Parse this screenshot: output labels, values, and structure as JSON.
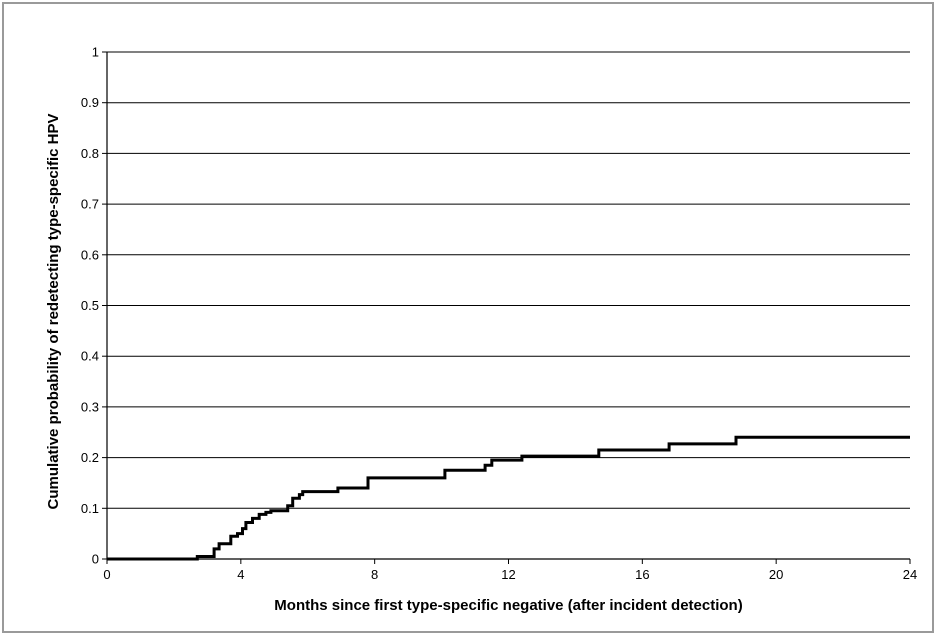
{
  "chart_data": {
    "type": "line",
    "title": "",
    "xlabel": "Months since first type-specific negative  (after incident detection)",
    "ylabel": "Cumulative probability of redetecting type-specific HPV",
    "xlim": [
      0,
      24
    ],
    "ylim": [
      0,
      1
    ],
    "x_ticks": [
      0,
      4,
      8,
      12,
      16,
      20,
      24
    ],
    "x_tick_labels": [
      "0",
      "4",
      "8",
      "12",
      "16",
      "20",
      "24"
    ],
    "y_ticks": [
      0,
      0.1,
      0.2,
      0.3,
      0.4,
      0.5,
      0.6,
      0.7,
      0.8,
      0.9,
      1
    ],
    "y_tick_labels": [
      "0",
      "0.1",
      "0.2",
      "0.3",
      "0.4",
      "0.5",
      "0.6",
      "0.7",
      "0.8",
      "0.9",
      "1"
    ],
    "grid": "horizontal",
    "legend": "none",
    "line_color": "#000000",
    "series": [
      {
        "step": true,
        "points": [
          [
            0,
            0
          ],
          [
            2.7,
            0
          ],
          [
            2.7,
            0.005
          ],
          [
            3.2,
            0.005
          ],
          [
            3.2,
            0.02
          ],
          [
            3.35,
            0.03
          ],
          [
            3.6,
            0.03
          ],
          [
            3.7,
            0.045
          ],
          [
            3.9,
            0.05
          ],
          [
            4.05,
            0.06
          ],
          [
            4.15,
            0.072
          ],
          [
            4.35,
            0.08
          ],
          [
            4.55,
            0.088
          ],
          [
            4.75,
            0.092
          ],
          [
            4.9,
            0.095
          ],
          [
            5.2,
            0.095
          ],
          [
            5.4,
            0.105
          ],
          [
            5.55,
            0.12
          ],
          [
            5.75,
            0.127
          ],
          [
            5.85,
            0.133
          ],
          [
            6.9,
            0.133
          ],
          [
            6.9,
            0.14
          ],
          [
            7.8,
            0.14
          ],
          [
            7.8,
            0.16
          ],
          [
            10.1,
            0.16
          ],
          [
            10.1,
            0.175
          ],
          [
            11.0,
            0.175
          ],
          [
            11.3,
            0.185
          ],
          [
            11.5,
            0.195
          ],
          [
            12.4,
            0.195
          ],
          [
            12.4,
            0.203
          ],
          [
            14.7,
            0.203
          ],
          [
            14.7,
            0.215
          ],
          [
            16.8,
            0.215
          ],
          [
            16.8,
            0.227
          ],
          [
            18.8,
            0.227
          ],
          [
            18.8,
            0.24
          ],
          [
            24,
            0.24
          ]
        ]
      }
    ]
  }
}
